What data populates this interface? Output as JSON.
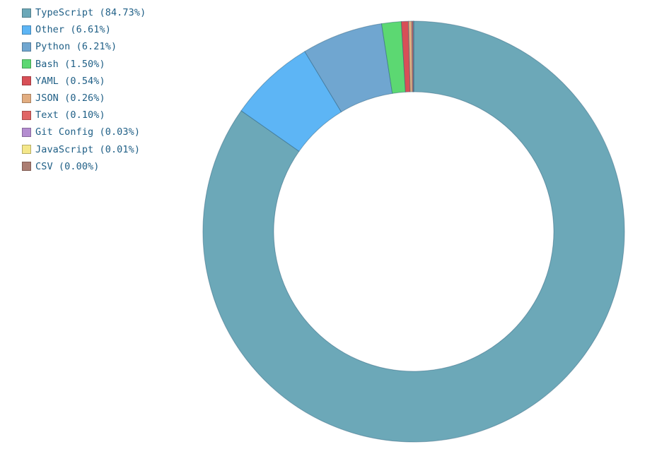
{
  "chart_data": {
    "type": "pie",
    "variant": "donut",
    "legend_position": "top-left",
    "categories": [
      "TypeScript (84.73%)",
      "Other (6.61%)",
      "Python (6.21%)",
      "Bash (1.50%)",
      "YAML (0.54%)",
      "JSON (0.26%)",
      "Text (0.10%)",
      "Git Config (0.03%)",
      "JavaScript (0.01%)",
      "CSV (0.00%)"
    ],
    "values": [
      84.73,
      6.61,
      6.21,
      1.5,
      0.54,
      0.26,
      0.1,
      0.03,
      0.01,
      0.0
    ],
    "colors": [
      "#6ca8b8",
      "#5db5f5",
      "#70a6d0",
      "#5cd872",
      "#d84f57",
      "#e2ad80",
      "#e06565",
      "#b48dd0",
      "#f4e78a",
      "#ab7d72"
    ]
  }
}
